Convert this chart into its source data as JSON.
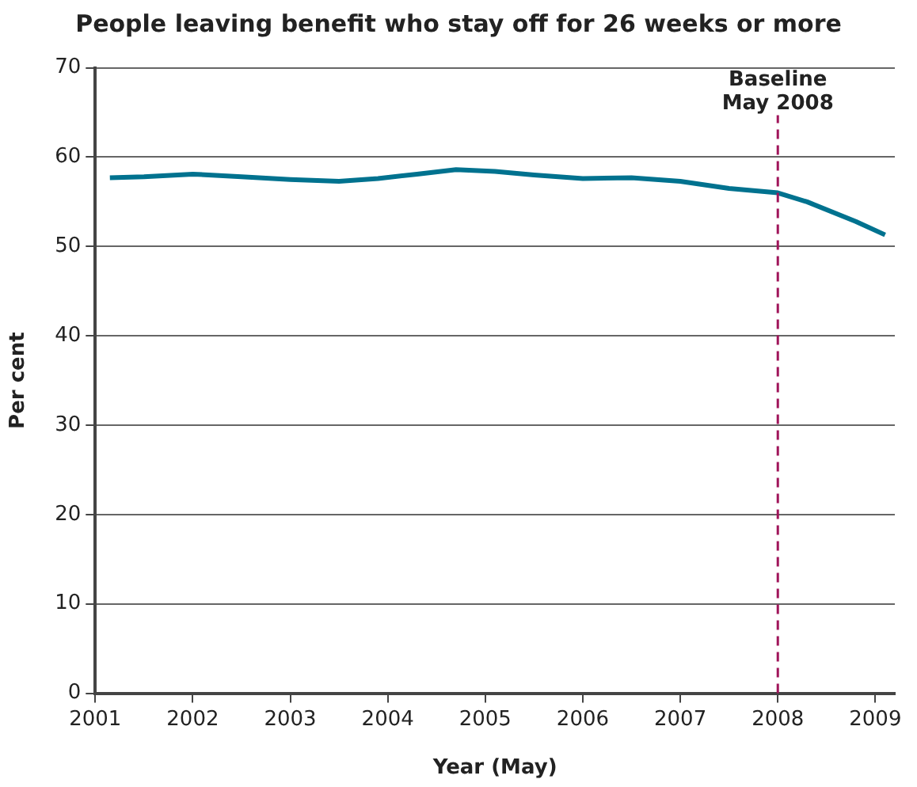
{
  "chart_data": {
    "type": "line",
    "title": "People leaving benefit who stay off for 26 weeks or more",
    "xlabel": "Year (May)",
    "ylabel": "Per cent",
    "x": [
      2001.15,
      2001.5,
      2002.0,
      2002.5,
      2003.0,
      2003.5,
      2003.9,
      2004.3,
      2004.7,
      2005.1,
      2005.5,
      2006.0,
      2006.5,
      2007.0,
      2007.5,
      2008.0,
      2008.3,
      2008.8,
      2009.1
    ],
    "series": [
      {
        "color": "#00728f",
        "values": [
          57.7,
          57.8,
          58.1,
          57.8,
          57.5,
          57.3,
          57.6,
          58.1,
          58.6,
          58.4,
          58.0,
          57.6,
          57.7,
          57.3,
          56.5,
          56.0,
          55.0,
          52.8,
          51.3
        ]
      }
    ],
    "xlim": [
      2001,
      2009.2
    ],
    "xticks": [
      2001,
      2002,
      2003,
      2004,
      2005,
      2006,
      2007,
      2008,
      2009
    ],
    "ylim": [
      0,
      70
    ],
    "yticks": [
      0,
      10,
      20,
      30,
      40,
      50,
      60,
      70
    ],
    "grid": "y",
    "legend": false,
    "marker": "none",
    "line_style": "solid",
    "ref_lines": [
      {
        "axis": "x",
        "value": 2008,
        "label": "Baseline\nMay 2008",
        "color": "#a0155a",
        "line_style": "dashed"
      }
    ]
  }
}
